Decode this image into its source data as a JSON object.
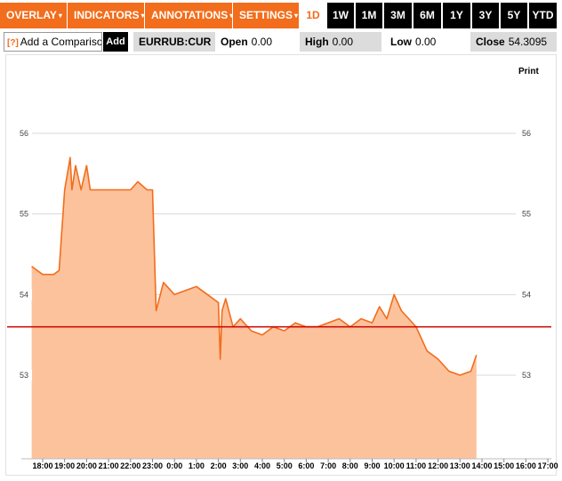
{
  "toolbar": {
    "menus": [
      {
        "label": "OVERLAY"
      },
      {
        "label": "INDICATORS"
      },
      {
        "label": "ANNOTATIONS"
      },
      {
        "label": "SETTINGS"
      }
    ],
    "menu_arrow": "▾",
    "ranges": [
      {
        "label": "1D",
        "active": true
      },
      {
        "label": "1W"
      },
      {
        "label": "1M"
      },
      {
        "label": "3M"
      },
      {
        "label": "6M"
      },
      {
        "label": "1Y"
      },
      {
        "label": "3Y"
      },
      {
        "label": "5Y"
      },
      {
        "label": "YTD"
      }
    ]
  },
  "infobar": {
    "help_mark": "[?]",
    "comparison_label": "Add a Comparison",
    "add_label": "Add",
    "ticker": "EURRUB:CUR",
    "open_label": "Open",
    "open_value": "0.00",
    "high_label": "High",
    "high_value": "0.00",
    "low_label": "Low",
    "low_value": "0.00",
    "close_label": "Close",
    "close_value": "54.3095"
  },
  "print_label": "Print",
  "colors": {
    "accent": "#f26d1c",
    "area_fill": "#fcc29c",
    "line": "#f26d1c",
    "close_line": "#cc0000"
  },
  "chart_data": {
    "type": "area",
    "ylim": [
      52.1,
      57.0
    ],
    "yticks": [
      "56",
      "55",
      "54",
      "53"
    ],
    "xticks": [
      "18:00",
      "19:00",
      "20:00",
      "21:00",
      "22:00",
      "23:00",
      "0:00",
      "1:00",
      "2:00",
      "3:00",
      "4:00",
      "5:00",
      "6:00",
      "7:00",
      "8:00",
      "9:00",
      "10:00",
      "11:00",
      "12:00",
      "13:00",
      "14:00",
      "15:00",
      "16:00",
      "17:00"
    ],
    "reference_line": 53.6,
    "x": [
      "17:30",
      "18:00",
      "18:30",
      "18:45",
      "19:00",
      "19:15",
      "19:20",
      "19:30",
      "19:45",
      "20:00",
      "20:10",
      "20:30",
      "21:00",
      "21:30",
      "22:00",
      "22:20",
      "22:45",
      "23:00",
      "23:10",
      "23:30",
      "0:00",
      "0:30",
      "1:00",
      "1:30",
      "2:00",
      "2:05",
      "2:10",
      "2:20",
      "2:40",
      "3:00",
      "3:30",
      "4:00",
      "4:30",
      "5:00",
      "5:30",
      "6:00",
      "6:30",
      "7:00",
      "7:30",
      "8:00",
      "8:30",
      "9:00",
      "9:20",
      "9:40",
      "10:00",
      "10:20",
      "10:40",
      "11:00",
      "11:30",
      "12:00",
      "12:30",
      "13:00",
      "13:30",
      "13:45"
    ],
    "values": [
      54.35,
      54.25,
      54.25,
      54.3,
      55.3,
      55.7,
      55.3,
      55.6,
      55.3,
      55.6,
      55.3,
      55.3,
      55.3,
      55.3,
      55.3,
      55.4,
      55.3,
      55.3,
      53.8,
      54.15,
      54.0,
      54.05,
      54.1,
      54.0,
      53.9,
      53.2,
      53.8,
      53.95,
      53.6,
      53.7,
      53.55,
      53.5,
      53.6,
      53.55,
      53.65,
      53.6,
      53.6,
      53.65,
      53.7,
      53.6,
      53.7,
      53.65,
      53.85,
      53.7,
      54.0,
      53.8,
      53.7,
      53.6,
      53.3,
      53.2,
      53.05,
      53.0,
      53.05,
      53.25
    ]
  }
}
